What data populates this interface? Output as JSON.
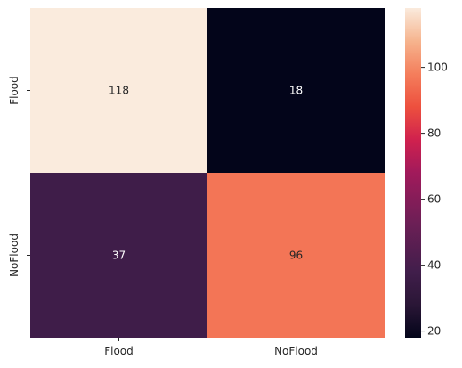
{
  "chart_data": {
    "type": "heatmap",
    "title": "",
    "xlabel": "",
    "ylabel": "",
    "x_categories": [
      "Flood",
      "NoFlood"
    ],
    "y_categories": [
      "Flood",
      "NoFlood"
    ],
    "values": [
      [
        118,
        18
      ],
      [
        37,
        96
      ]
    ],
    "annotations": [
      [
        "118",
        "18"
      ],
      [
        "37",
        "96"
      ]
    ],
    "colormap": "rocket",
    "value_range": [
      18,
      118
    ],
    "colorbar": {
      "ticks": [
        20,
        40,
        60,
        80,
        100
      ],
      "tick_labels": [
        "20",
        "40",
        "60",
        "80",
        "100"
      ]
    }
  }
}
